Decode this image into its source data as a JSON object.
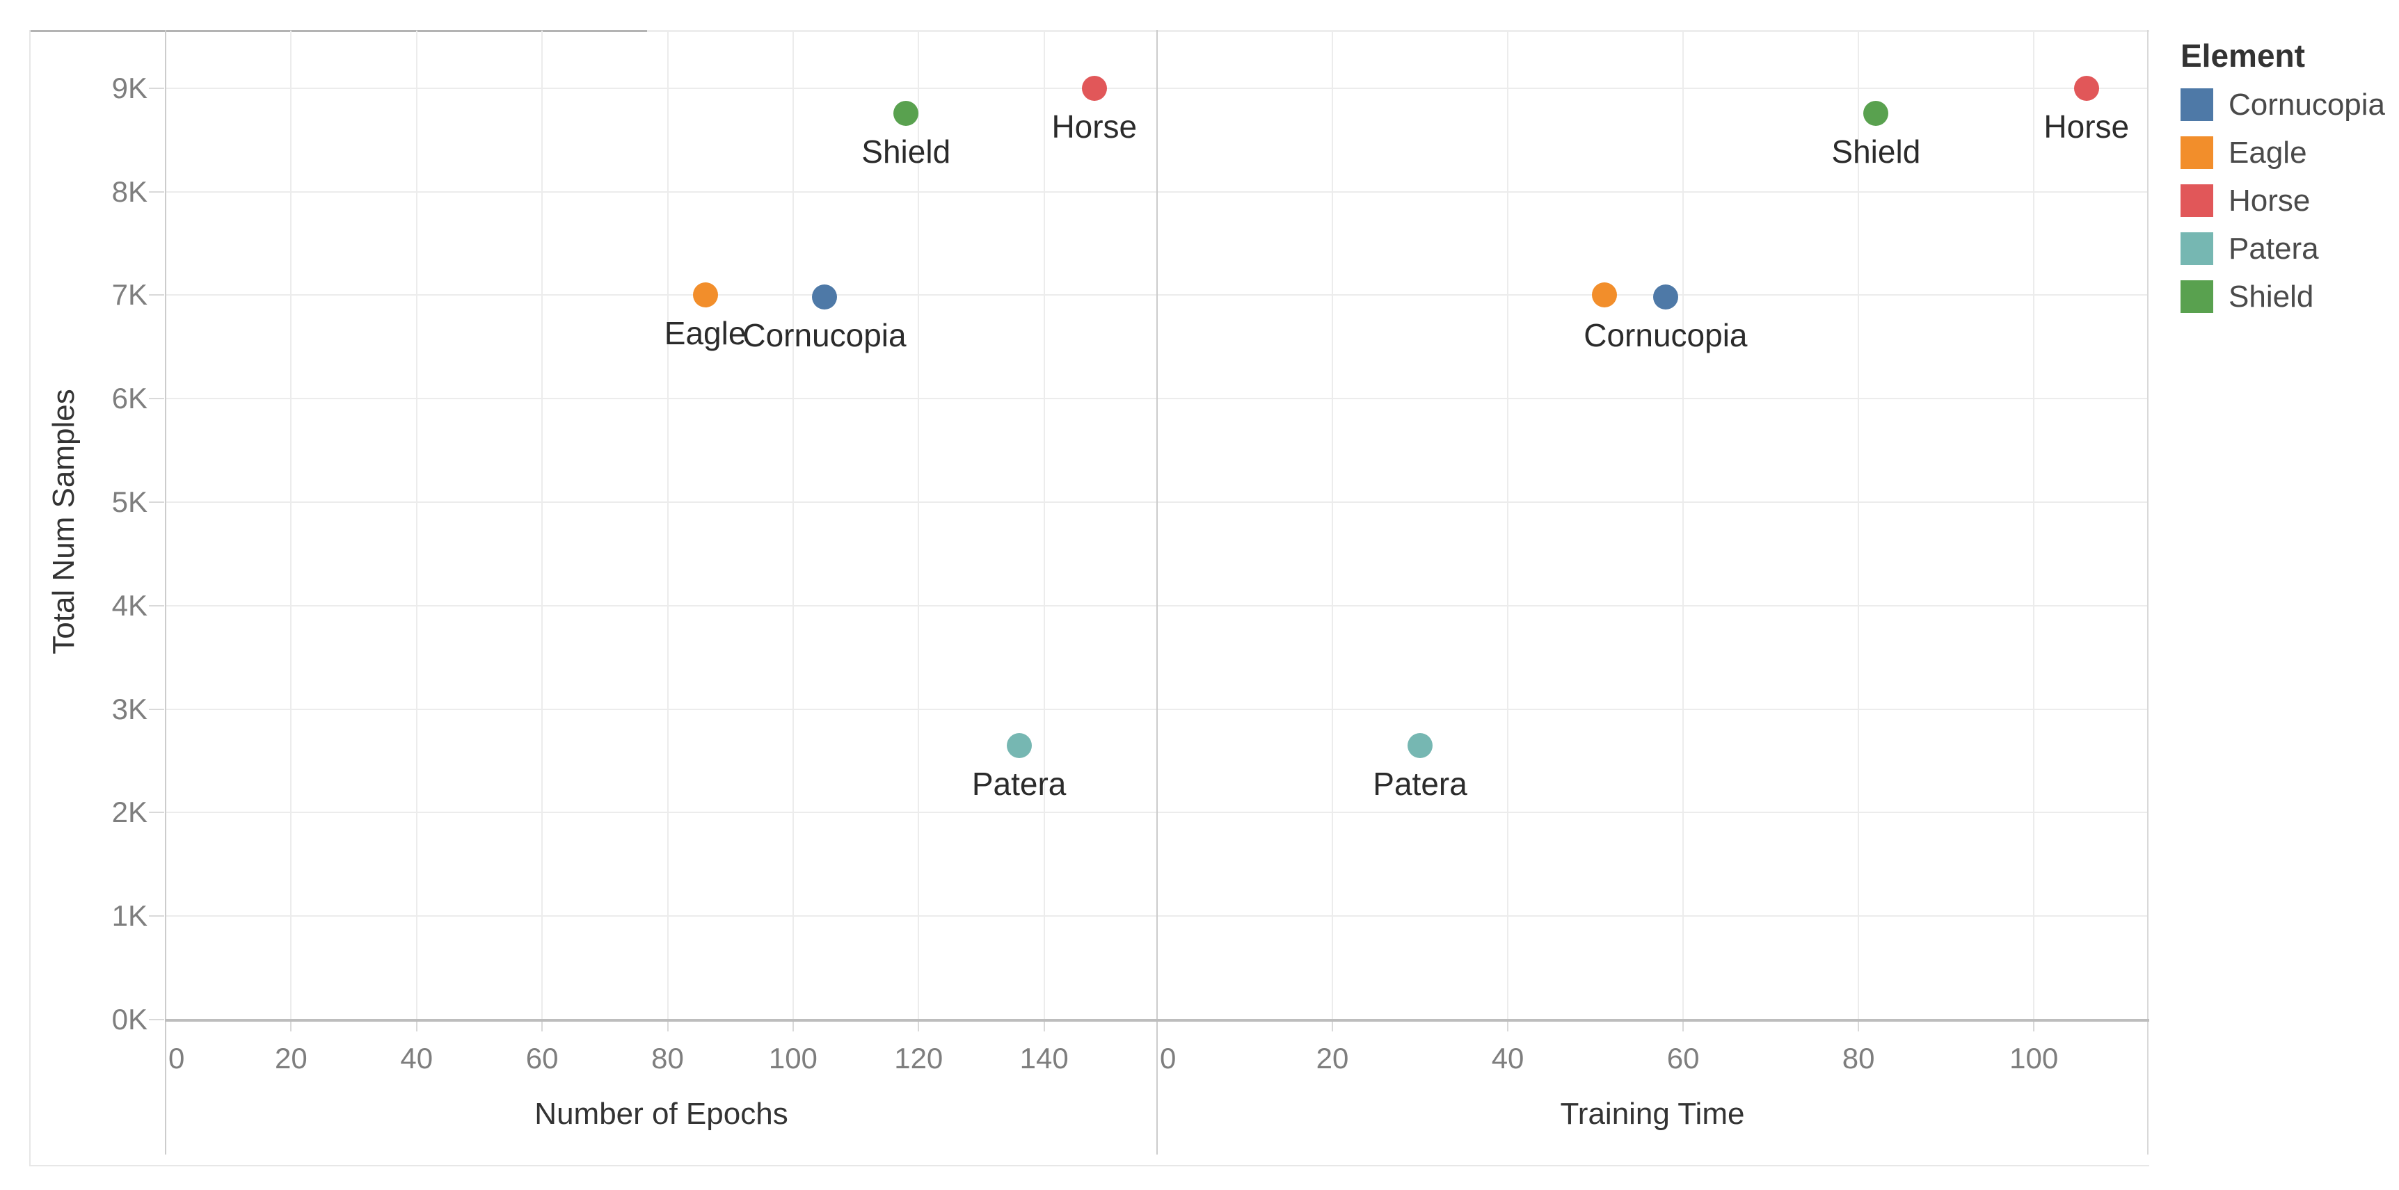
{
  "chart_data": {
    "type": "scatter",
    "title": "",
    "ylabel": "Total Num Samples",
    "ylim": [
      0,
      9500
    ],
    "y_ticks": [
      "0K",
      "1K",
      "2K",
      "3K",
      "4K",
      "5K",
      "6K",
      "7K",
      "8K",
      "9K"
    ],
    "grid": true,
    "panels": [
      {
        "xlabel": "Number of Epochs",
        "xlim": [
          0,
          158
        ],
        "x_ticks": [
          0,
          20,
          40,
          60,
          80,
          100,
          120,
          140
        ],
        "points": [
          {
            "element": "Cornucopia",
            "x": 105,
            "y": 6980,
            "label": "Cornucopia"
          },
          {
            "element": "Eagle",
            "x": 86,
            "y": 7000,
            "label": "Eagle"
          },
          {
            "element": "Horse",
            "x": 148,
            "y": 9000,
            "label": "Horse"
          },
          {
            "element": "Patera",
            "x": 136,
            "y": 2650,
            "label": "Patera"
          },
          {
            "element": "Shield",
            "x": 118,
            "y": 8760,
            "label": "Shield"
          }
        ]
      },
      {
        "xlabel": "Training Time",
        "xlim": [
          0,
          113
        ],
        "x_ticks": [
          0,
          20,
          40,
          60,
          80,
          100
        ],
        "points": [
          {
            "element": "Cornucopia",
            "x": 58,
            "y": 6980,
            "label": "Cornucopia"
          },
          {
            "element": "Eagle",
            "x": 51,
            "y": 7000,
            "label": ""
          },
          {
            "element": "Horse",
            "x": 106,
            "y": 9000,
            "label": "Horse"
          },
          {
            "element": "Patera",
            "x": 30,
            "y": 2650,
            "label": "Patera"
          },
          {
            "element": "Shield",
            "x": 82,
            "y": 8760,
            "label": "Shield"
          }
        ]
      }
    ],
    "legend": {
      "title": "Element",
      "position": "top-right",
      "items": [
        {
          "label": "Cornucopia",
          "color": "#4e79a7"
        },
        {
          "label": "Eagle",
          "color": "#f28e2b"
        },
        {
          "label": "Horse",
          "color": "#e15759"
        },
        {
          "label": "Patera",
          "color": "#76b7b2"
        },
        {
          "label": "Shield",
          "color": "#59a14f"
        }
      ]
    },
    "colors": {
      "Cornucopia": "#4e79a7",
      "Eagle": "#f28e2b",
      "Horse": "#e15759",
      "Patera": "#76b7b2",
      "Shield": "#59a14f"
    }
  }
}
